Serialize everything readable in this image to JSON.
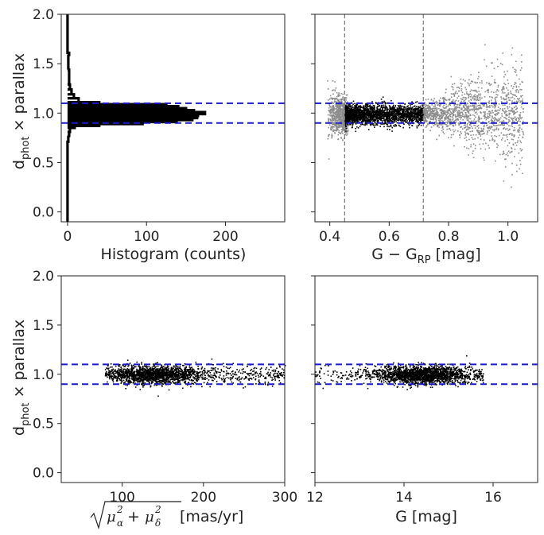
{
  "chart_data": [
    {
      "id": "hist",
      "type": "histogram",
      "xlabel": "Histogram (counts)",
      "xlim": [
        -8,
        275
      ],
      "ylim": [
        -0.1,
        2.0
      ],
      "xticks": [
        "0",
        "100",
        "200"
      ],
      "yticks": [
        "0.0",
        "0.5",
        "1.0",
        "1.5",
        "2.0"
      ],
      "bins": [
        {
          "y": 0.72,
          "count": 1
        },
        {
          "y": 0.78,
          "count": 2
        },
        {
          "y": 0.82,
          "count": 3
        },
        {
          "y": 0.86,
          "count": 9
        },
        {
          "y": 0.88,
          "count": 40
        },
        {
          "y": 0.9,
          "count": 95
        },
        {
          "y": 0.92,
          "count": 138
        },
        {
          "y": 0.94,
          "count": 158
        },
        {
          "y": 0.96,
          "count": 164
        },
        {
          "y": 0.98,
          "count": 165
        },
        {
          "y": 1.0,
          "count": 174
        },
        {
          "y": 1.02,
          "count": 160
        },
        {
          "y": 1.04,
          "count": 150
        },
        {
          "y": 1.06,
          "count": 140
        },
        {
          "y": 1.08,
          "count": 125
        },
        {
          "y": 1.1,
          "count": 40
        },
        {
          "y": 1.12,
          "count": 14
        },
        {
          "y": 1.16,
          "count": 8
        },
        {
          "y": 1.2,
          "count": 5
        },
        {
          "y": 1.25,
          "count": 3
        },
        {
          "y": 1.3,
          "count": 2
        },
        {
          "y": 1.45,
          "count": 1
        },
        {
          "y": 1.6,
          "count": 2
        }
      ],
      "hlines": [
        0.9,
        1.1
      ],
      "line_color": "#0000cc"
    },
    {
      "id": "color",
      "type": "scatter",
      "xlabel": "G − G",
      "xlabel_sub": "RP",
      "xlabel_tail": " [mag]",
      "xlim": [
        0.35,
        1.1
      ],
      "ylim": [
        -0.1,
        2.0
      ],
      "xticks": [
        "0.4",
        "0.6",
        "0.8",
        "1.0"
      ],
      "yticks": [
        "0.0",
        "0.5",
        "1.0",
        "1.5",
        "2.0"
      ],
      "vlines": [
        0.45,
        0.715
      ],
      "hlines": [
        0.9,
        1.1
      ],
      "series": [
        {
          "distribution": "gray blue-edge clump",
          "color": "#8c8c8c",
          "x_range": [
            0.39,
            0.46
          ],
          "y_center": 0.98,
          "y_spread": 0.1,
          "n": 900
        },
        {
          "distribution": "black selected",
          "color": "#000000",
          "x_range": [
            0.45,
            0.715
          ],
          "y_center": 0.99,
          "y_spread": 0.05,
          "n": 2200
        },
        {
          "distribution": "gray red tail",
          "color": "#8c8c8c",
          "x_range": [
            0.715,
            1.05
          ],
          "y_center": 1.0,
          "y_spread": 0.14,
          "n": 1500
        }
      ]
    },
    {
      "id": "pm",
      "type": "scatter",
      "xlabel_tail": " [mas/yr]",
      "xlim": [
        25,
        300
      ],
      "ylim": [
        -0.1,
        2.0
      ],
      "xticks": [
        "100",
        "200",
        "300"
      ],
      "yticks": [
        "0.0",
        "0.5",
        "1.0",
        "1.5",
        "2.0"
      ],
      "hlines": [
        0.9,
        1.1
      ],
      "series": [
        {
          "color": "#000000",
          "x_range": [
            78,
            300
          ],
          "x_peak": 140,
          "y_center": 1.0,
          "y_spread": 0.045,
          "n": 2200
        }
      ]
    },
    {
      "id": "gmag",
      "type": "scatter",
      "xlabel": "G [mag]",
      "xlim": [
        12,
        17
      ],
      "ylim": [
        -0.1,
        2.0
      ],
      "xticks": [
        "12",
        "14",
        "16"
      ],
      "yticks": [
        "0.0",
        "0.5",
        "1.0",
        "1.5",
        "2.0"
      ],
      "hlines": [
        0.9,
        1.1
      ],
      "series": [
        {
          "color": "#000000",
          "x_range": [
            12.0,
            15.8
          ],
          "x_peak": 14.4,
          "y_center": 1.0,
          "y_spread": 0.045,
          "n": 2200
        }
      ]
    }
  ],
  "shared": {
    "ylabel_main": "d",
    "ylabel_sub": "phot",
    "ylabel_tail": " × parallax"
  }
}
